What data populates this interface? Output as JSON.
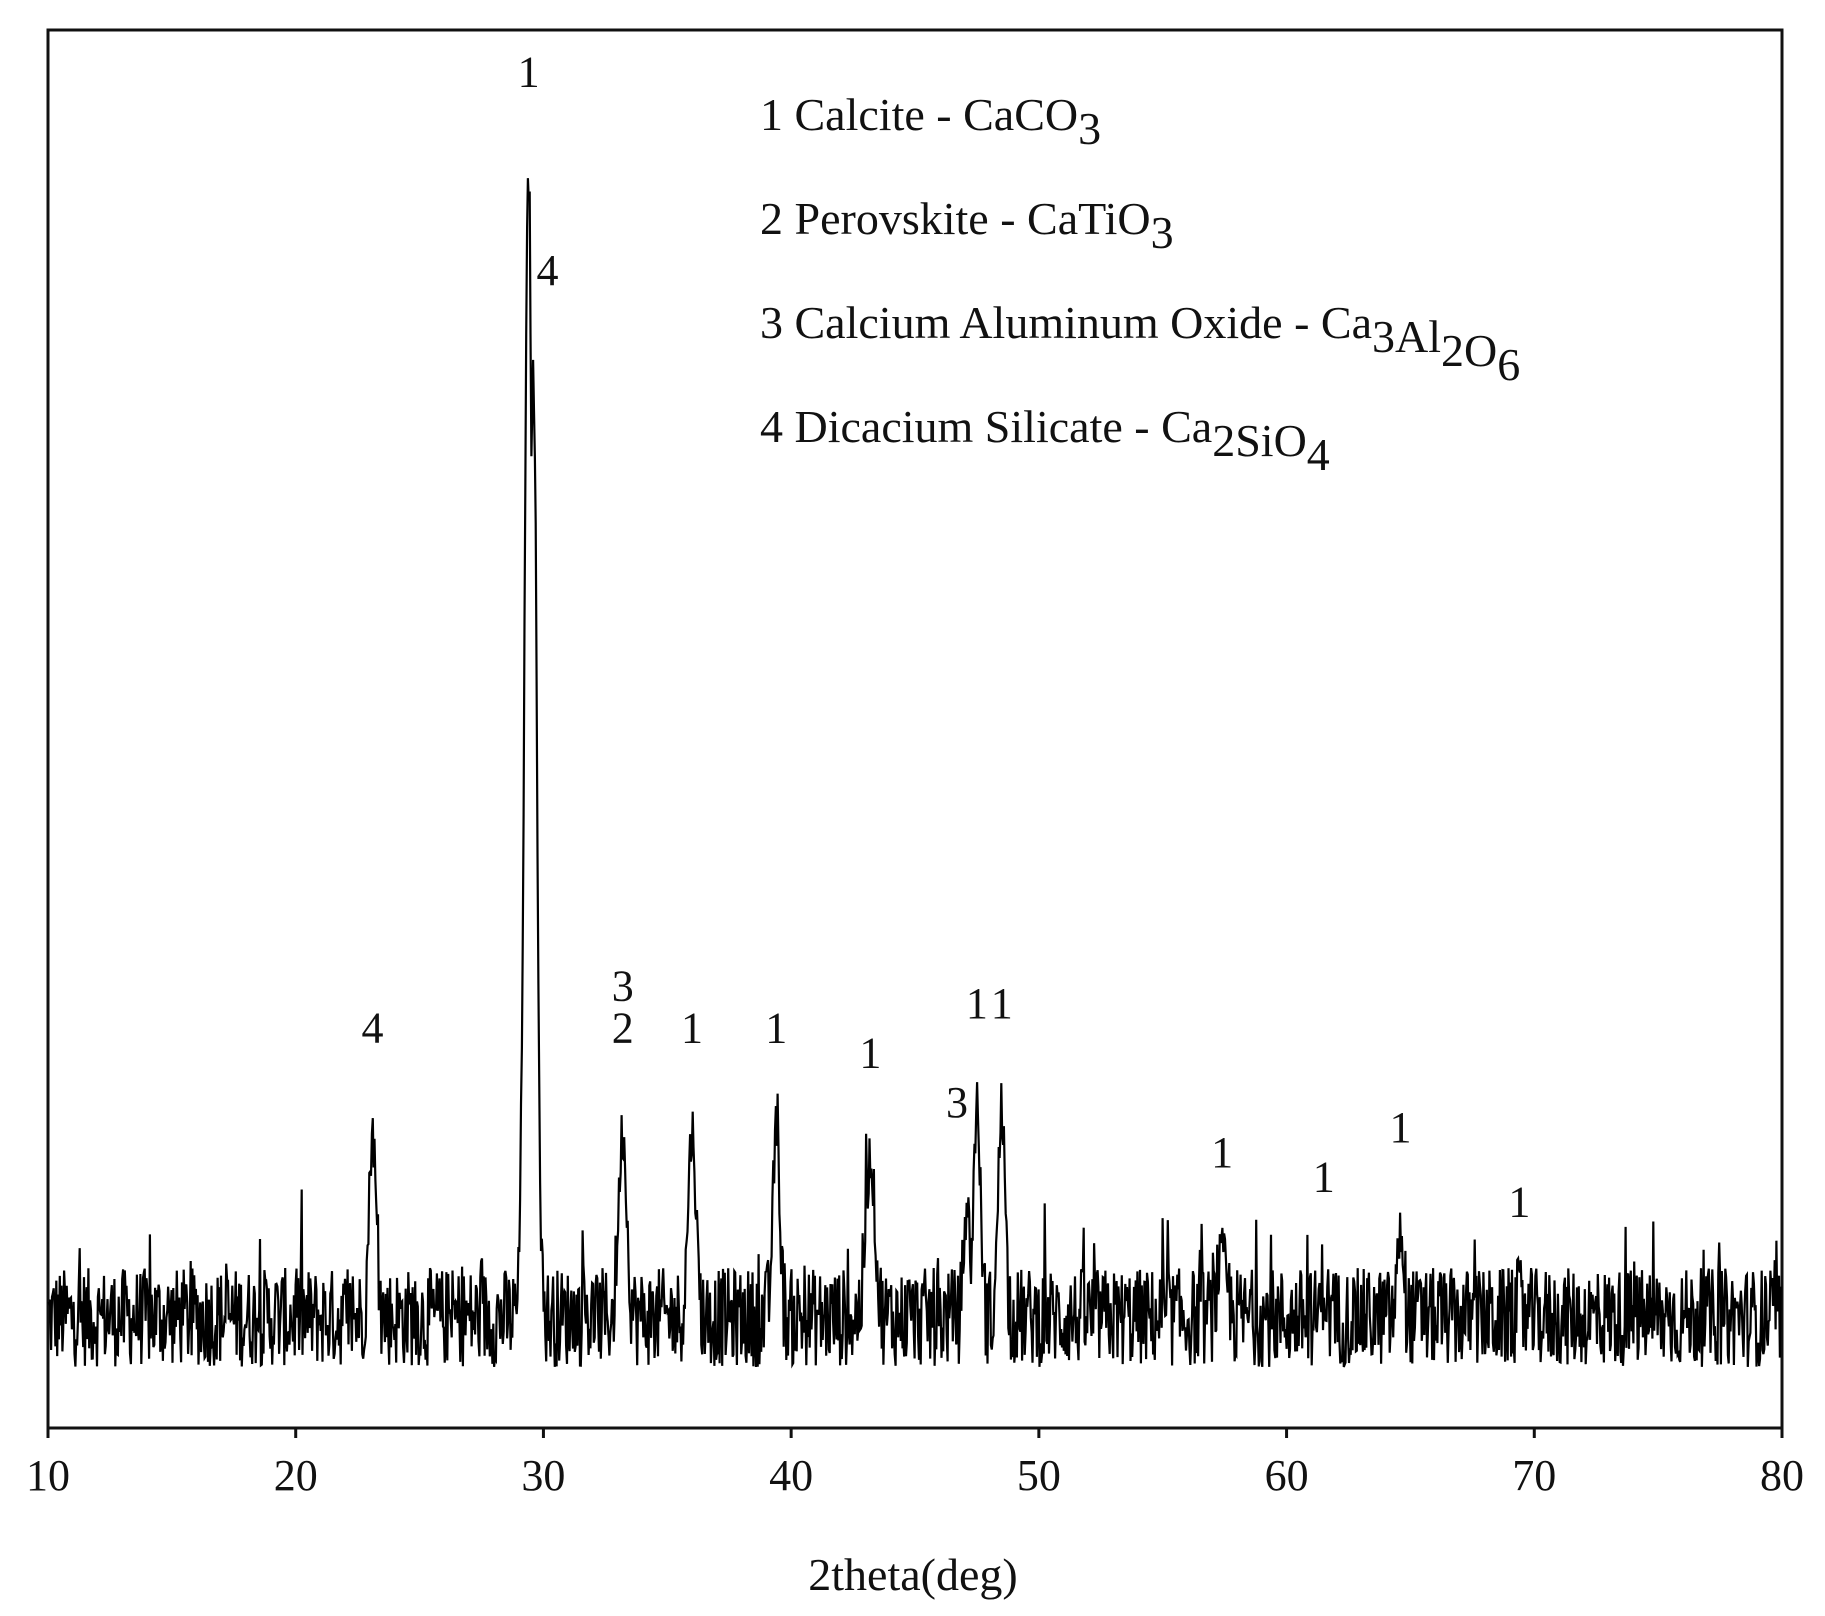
{
  "chart_data": {
    "type": "line",
    "title": "",
    "xlabel": "2theta(deg)",
    "ylabel": "",
    "xlim": [
      10,
      80
    ],
    "ylim": [
      0,
      100
    ],
    "y_axis_visible": false,
    "grid": false,
    "x_ticks": [
      10,
      20,
      30,
      40,
      50,
      60,
      70,
      80
    ],
    "legend_position": "top-right",
    "legend": [
      {
        "number": "1",
        "name": "Calcite - ",
        "formula": [
          [
            "Ca",
            ""
          ],
          [
            "C",
            ""
          ],
          [
            "O",
            "3"
          ]
        ]
      },
      {
        "number": "2",
        "name": "Perovskite - ",
        "formula": [
          [
            "CaTiO",
            "3"
          ]
        ]
      },
      {
        "number": "3",
        "name": "Calcium Aluminum Oxide - ",
        "formula": [
          [
            "Ca",
            "3"
          ],
          [
            "Al",
            "2"
          ],
          [
            "O",
            "6"
          ]
        ]
      },
      {
        "number": "4",
        "name": "Dicacium Silicate - ",
        "formula": [
          [
            "Ca",
            "2"
          ],
          [
            "SiO",
            "4"
          ]
        ]
      }
    ],
    "baseline": 6,
    "noise_amplitude": 8,
    "peaks": [
      {
        "x": 23.1,
        "height": 21,
        "width": 0.14,
        "label": "4"
      },
      {
        "x": 29.4,
        "height": 98,
        "width": 0.16,
        "label": "1"
      },
      {
        "x": 29.6,
        "height": 82,
        "width": 0.14,
        "label": "4"
      },
      {
        "x": 33.2,
        "height": 21,
        "width": 0.16,
        "label": "3\n2"
      },
      {
        "x": 36.0,
        "height": 21,
        "width": 0.16,
        "label": "1"
      },
      {
        "x": 39.4,
        "height": 21,
        "width": 0.14,
        "label": "1"
      },
      {
        "x": 43.2,
        "height": 19,
        "width": 0.18,
        "label": "1"
      },
      {
        "x": 47.1,
        "height": 15,
        "width": 0.12,
        "label": "3"
      },
      {
        "x": 47.5,
        "height": 23,
        "width": 0.14,
        "label": "1"
      },
      {
        "x": 48.5,
        "height": 23,
        "width": 0.14,
        "label": "1"
      },
      {
        "x": 57.4,
        "height": 11,
        "width": 0.18,
        "label": "1"
      },
      {
        "x": 61.5,
        "height": 9,
        "width": 0.1,
        "label": "1"
      },
      {
        "x": 64.6,
        "height": 13,
        "width": 0.12,
        "label": "1"
      },
      {
        "x": 69.4,
        "height": 7,
        "width": 0.1,
        "label": "1"
      }
    ]
  }
}
